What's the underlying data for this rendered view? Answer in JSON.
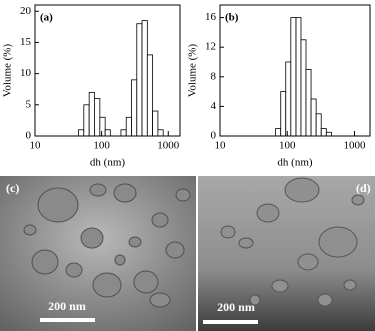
{
  "chart_data": [
    {
      "type": "histogram",
      "label": "(a)",
      "ylabel": "Volume (%)",
      "xlabel": "dh (nm)",
      "log_x": true,
      "xlim": [
        10,
        1500
      ],
      "xticks": [
        10,
        100,
        1000
      ],
      "ylim": [
        0,
        21
      ],
      "yticks": [
        0,
        5,
        10,
        15,
        20
      ],
      "bins": [
        45,
        54,
        65,
        78,
        94,
        113,
        135,
        162,
        195,
        234,
        281,
        337,
        404,
        485,
        582,
        699,
        839
      ],
      "values": [
        1,
        5,
        7,
        6,
        3,
        1,
        0,
        0,
        1,
        3,
        9,
        18,
        18.5,
        13,
        4,
        1
      ],
      "color": "#ffffff"
    },
    {
      "type": "histogram",
      "label": "(b)",
      "ylabel": "Volume (%)",
      "xlabel": "dh (nm)",
      "log_x": true,
      "xlim": [
        10,
        1700
      ],
      "xticks": [
        10,
        100,
        1000
      ],
      "ylim": [
        0,
        17.7
      ],
      "yticks": [
        0,
        4,
        8,
        12,
        16
      ],
      "bins": [
        67,
        80,
        95,
        113,
        135,
        160,
        190,
        226,
        269,
        320,
        381,
        453
      ],
      "values": [
        1,
        6,
        10,
        16,
        16,
        13,
        9,
        5,
        3,
        1,
        0.5
      ],
      "color": "#ffffff"
    }
  ],
  "images": [
    {
      "label": "(c)",
      "scale_bar": "200 nm"
    },
    {
      "label": "(d)",
      "scale_bar": "200 nm"
    }
  ]
}
